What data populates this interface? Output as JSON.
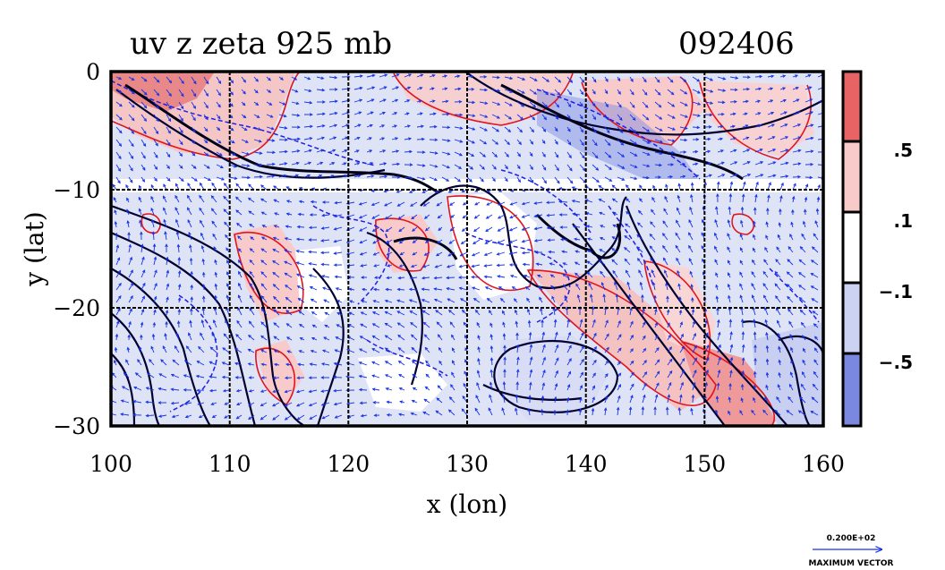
{
  "title": "uv z zeta 925 mb",
  "date_label": "092406",
  "x_axis": {
    "label": "x (lon)",
    "ticks": [
      "100",
      "110",
      "120",
      "130",
      "140",
      "150",
      "160"
    ],
    "range": [
      100,
      160
    ]
  },
  "y_axis": {
    "label": "y (lat)",
    "ticks": [
      "0",
      "−10",
      "−20",
      "−30"
    ],
    "range": [
      -30,
      0
    ]
  },
  "colorbar": {
    "labels": [
      ".5",
      ".1",
      "−.1",
      "−.5"
    ],
    "colors": [
      "#e86464",
      "#f8caca",
      "#ffffff",
      "#ccd2f2",
      "#7b88e0"
    ]
  },
  "vector_key": {
    "value": "0.200E+02",
    "label": "MAXIMUM VECTOR"
  },
  "colors": {
    "positive_contour": "#e0141e",
    "negative_contour": "#1e1ee6",
    "height_contour": "#000032",
    "vectors": "#1432e6"
  },
  "chart_data": {
    "type": "heatmap",
    "title": "uv z zeta 925 mb",
    "xlabel": "x (lon)",
    "ylabel": "y (lat)",
    "xlim": [
      100,
      160
    ],
    "ylim": [
      -30,
      0
    ],
    "grid": true,
    "x_ticks": [
      100,
      110,
      120,
      130,
      140,
      150,
      160
    ],
    "y_ticks": [
      0,
      -10,
      -20,
      -30
    ],
    "colorbar_levels": [
      0.5,
      0.1,
      -0.1,
      -0.5
    ]
  }
}
